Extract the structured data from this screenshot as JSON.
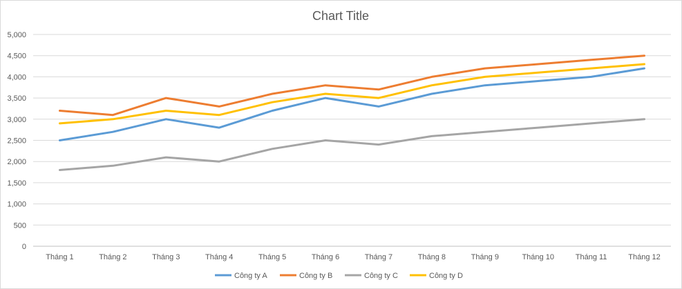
{
  "chart_data": {
    "type": "line",
    "title": "Chart Title",
    "xlabel": "",
    "ylabel": "",
    "categories": [
      "Tháng 1",
      "Tháng 2",
      "Tháng 3",
      "Tháng 4",
      "Tháng 5",
      "Tháng 6",
      "Tháng 7",
      "Tháng 8",
      "Tháng 9",
      "Tháng 10",
      "Tháng 11",
      "Tháng 12"
    ],
    "ylim": [
      0,
      5000
    ],
    "yticks": [
      0,
      500,
      1000,
      1500,
      2000,
      2500,
      3000,
      3500,
      4000,
      4500,
      5000
    ],
    "ytick_labels": [
      "0",
      "500",
      "1,000",
      "1,500",
      "2,000",
      "2,500",
      "3,000",
      "3,500",
      "4,000",
      "4,500",
      "5,000"
    ],
    "grid": true,
    "legend_position": "bottom",
    "series": [
      {
        "name": "Công ty A",
        "color": "#5b9bd5",
        "values": [
          2500,
          2700,
          3000,
          2800,
          3200,
          3500,
          3300,
          3600,
          3800,
          3900,
          4000,
          4200
        ]
      },
      {
        "name": "Công ty B",
        "color": "#ed7d31",
        "values": [
          3200,
          3100,
          3500,
          3300,
          3600,
          3800,
          3700,
          4000,
          4200,
          4300,
          4400,
          4500
        ]
      },
      {
        "name": "Công ty C",
        "color": "#a5a5a5",
        "values": [
          1800,
          1900,
          2100,
          2000,
          2300,
          2500,
          2400,
          2600,
          2700,
          2800,
          2900,
          3000
        ]
      },
      {
        "name": "Công ty D",
        "color": "#ffc000",
        "values": [
          2900,
          3000,
          3200,
          3100,
          3400,
          3600,
          3500,
          3800,
          4000,
          4100,
          4200,
          4300
        ]
      }
    ]
  }
}
